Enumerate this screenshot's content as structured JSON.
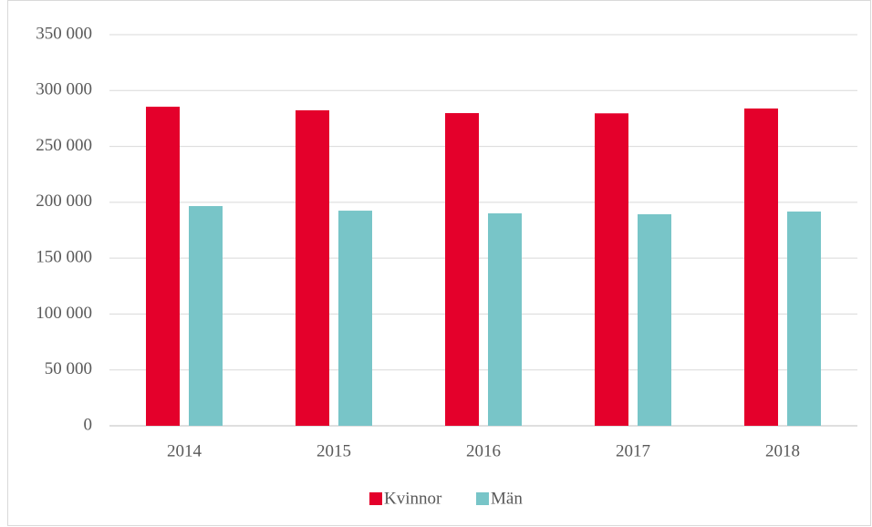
{
  "chart_data": {
    "type": "bar",
    "categories": [
      "2014",
      "2015",
      "2016",
      "2017",
      "2018"
    ],
    "series": [
      {
        "name": "Kvinnor",
        "color": "#e4002b",
        "values": [
          285500,
          282300,
          279800,
          279600,
          283900
        ]
      },
      {
        "name": "Män",
        "color": "#78c5c8",
        "values": [
          196600,
          192500,
          190100,
          189300,
          191700
        ]
      }
    ],
    "ylim": [
      0,
      350000
    ],
    "yticks": [
      0,
      {
        "value": 50000,
        "label": "50 000"
      },
      {
        "value": 100000,
        "label": "100 000"
      },
      {
        "value": 150000,
        "label": "150 000"
      },
      {
        "value": 200000,
        "label": "200 000"
      },
      {
        "value": 250000,
        "label": "250 000"
      },
      {
        "value": 300000,
        "label": "300 000"
      },
      {
        "value": 350000,
        "label": "350 000"
      }
    ],
    "grid": true,
    "legend": "bottom"
  }
}
